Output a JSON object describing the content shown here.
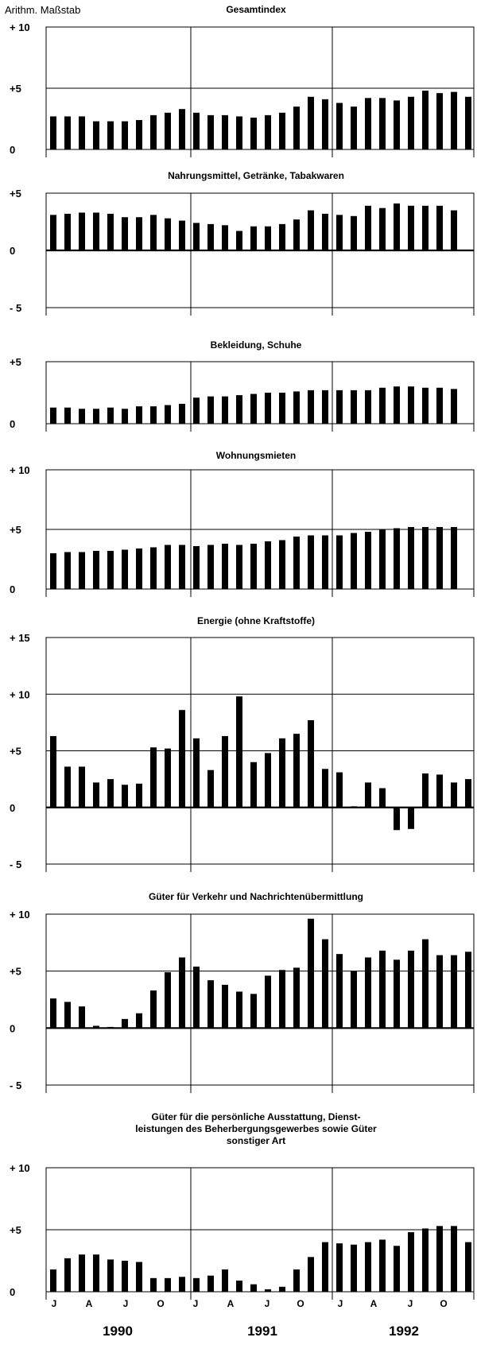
{
  "header": {
    "scale_label": "Arithm. Maßstab"
  },
  "x_axis": {
    "month_labels": [
      "J",
      "A",
      "J",
      "O",
      "J",
      "A",
      "J",
      "O",
      "J",
      "A",
      "J",
      "O"
    ],
    "years": [
      "1990",
      "1991",
      "1992"
    ]
  },
  "chart_data": [
    {
      "type": "bar",
      "title": "Gesamtindex",
      "ylim": [
        0,
        10
      ],
      "yticks": [
        {
          "value": 10,
          "label": "+ 10"
        },
        {
          "value": 5,
          "label": "+5"
        },
        {
          "value": 0,
          "label": "0"
        }
      ],
      "values": [
        2.7,
        2.7,
        2.7,
        2.3,
        2.3,
        2.3,
        2.4,
        2.8,
        3.0,
        3.3,
        3.0,
        2.8,
        2.8,
        2.7,
        2.6,
        2.8,
        3.0,
        3.5,
        4.3,
        4.1,
        3.8,
        3.5,
        4.2,
        4.2,
        4.0,
        4.3,
        4.8,
        4.6,
        4.7,
        4.3
      ]
    },
    {
      "type": "bar",
      "title": "Nahrungsmittel, Getränke, Tabakwaren",
      "ylim": [
        -5,
        5
      ],
      "yticks": [
        {
          "value": 5,
          "label": "+5"
        },
        {
          "value": 0,
          "label": "0"
        },
        {
          "value": -5,
          "label": "- 5"
        }
      ],
      "values": [
        3.1,
        3.2,
        3.3,
        3.3,
        3.2,
        2.9,
        2.9,
        3.1,
        2.8,
        2.6,
        2.4,
        2.3,
        2.2,
        1.7,
        2.1,
        2.1,
        2.3,
        2.7,
        3.5,
        3.2,
        3.1,
        3.0,
        3.9,
        3.7,
        4.1,
        3.9,
        3.9,
        3.9,
        3.5
      ]
    },
    {
      "type": "bar",
      "title": "Bekleidung, Schuhe",
      "ylim": [
        0,
        5
      ],
      "yticks": [
        {
          "value": 5,
          "label": "+5"
        },
        {
          "value": 0,
          "label": "0"
        }
      ],
      "values": [
        1.3,
        1.3,
        1.2,
        1.2,
        1.3,
        1.2,
        1.4,
        1.4,
        1.5,
        1.6,
        2.1,
        2.2,
        2.2,
        2.3,
        2.4,
        2.5,
        2.5,
        2.6,
        2.7,
        2.7,
        2.7,
        2.7,
        2.7,
        2.9,
        3.0,
        3.0,
        2.9,
        2.9,
        2.8
      ]
    },
    {
      "type": "bar",
      "title": "Wohnungsmieten",
      "ylim": [
        0,
        10
      ],
      "yticks": [
        {
          "value": 10,
          "label": "+ 10"
        },
        {
          "value": 5,
          "label": "+5"
        },
        {
          "value": 0,
          "label": "0"
        }
      ],
      "values": [
        3.0,
        3.1,
        3.1,
        3.2,
        3.2,
        3.3,
        3.4,
        3.5,
        3.7,
        3.7,
        3.6,
        3.7,
        3.8,
        3.7,
        3.8,
        4.0,
        4.1,
        4.4,
        4.5,
        4.5,
        4.5,
        4.7,
        4.8,
        5.0,
        5.1,
        5.2,
        5.2,
        5.2,
        5.2
      ]
    },
    {
      "type": "bar",
      "title": "Energie (ohne Kraftstoffe)",
      "ylim": [
        -5,
        15
      ],
      "yticks": [
        {
          "value": 15,
          "label": "+ 15"
        },
        {
          "value": 10,
          "label": "+ 10"
        },
        {
          "value": 5,
          "label": "+5"
        },
        {
          "value": 0,
          "label": "0"
        },
        {
          "value": -5,
          "label": "- 5"
        }
      ],
      "values": [
        6.3,
        3.6,
        3.6,
        2.2,
        2.5,
        2.0,
        2.1,
        5.3,
        5.2,
        8.6,
        6.1,
        3.3,
        6.3,
        9.8,
        4.0,
        4.8,
        6.1,
        6.5,
        7.7,
        3.4,
        3.1,
        0.1,
        2.2,
        1.7,
        -2.0,
        -1.9,
        3.0,
        2.9,
        2.2,
        2.5
      ]
    },
    {
      "type": "bar",
      "title": "Güter für Verkehr und Nachrichtenübermittlung",
      "ylim": [
        -5,
        10
      ],
      "yticks": [
        {
          "value": 10,
          "label": "+ 10"
        },
        {
          "value": 5,
          "label": "+5"
        },
        {
          "value": 0,
          "label": "0"
        },
        {
          "value": -5,
          "label": "- 5"
        }
      ],
      "values": [
        2.6,
        2.3,
        1.9,
        0.2,
        0.1,
        0.8,
        1.3,
        3.3,
        4.9,
        6.2,
        5.4,
        4.2,
        3.8,
        3.2,
        3.0,
        4.6,
        5.1,
        5.3,
        9.6,
        7.8,
        6.5,
        5.0,
        6.2,
        6.8,
        6.0,
        6.8,
        7.8,
        6.4,
        6.4,
        6.7
      ]
    },
    {
      "type": "bar",
      "title": "Güter für die persönliche Ausstattung, Dienst-\nleistungen des Beherbergungsgewerbes sowie Güter\nsonstiger Art",
      "ylim": [
        0,
        10
      ],
      "yticks": [
        {
          "value": 10,
          "label": "+ 10"
        },
        {
          "value": 5,
          "label": "+5"
        },
        {
          "value": 0,
          "label": "0"
        }
      ],
      "values": [
        1.8,
        2.7,
        3.0,
        3.0,
        2.6,
        2.5,
        2.4,
        1.1,
        1.1,
        1.2,
        1.1,
        1.3,
        1.8,
        0.9,
        0.6,
        0.2,
        0.4,
        1.8,
        2.8,
        4.0,
        3.9,
        3.8,
        4.0,
        4.2,
        3.7,
        4.8,
        5.1,
        5.3,
        5.3,
        4.0
      ]
    }
  ]
}
